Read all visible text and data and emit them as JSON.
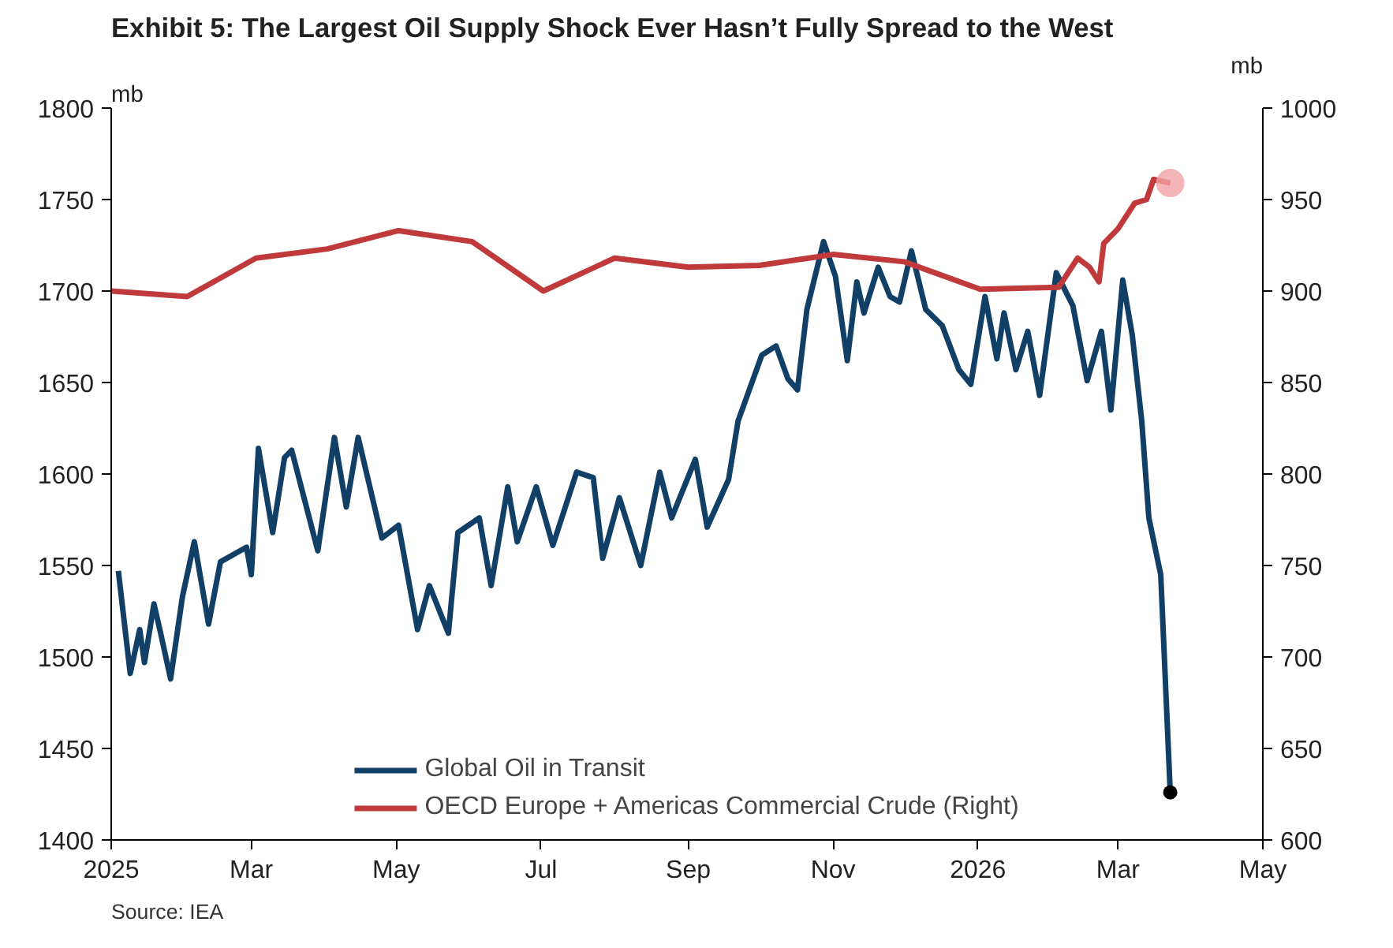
{
  "chart_data": {
    "type": "line",
    "title": "Exhibit 5: The Largest Oil Supply Shock Ever Hasn’t Fully Spread to the West",
    "ylabel": "mb",
    "y2label": "mb",
    "annotations": [
      "Source: IEA"
    ],
    "xlim": [
      "2025-01-01",
      "2026-05-01"
    ],
    "xticks": [
      {
        "value": "2025-01-01",
        "label": "2025"
      },
      {
        "value": "2025-03-01",
        "label": "Mar"
      },
      {
        "value": "2025-05-01",
        "label": "May"
      },
      {
        "value": "2025-07-01",
        "label": "Jul"
      },
      {
        "value": "2025-09-01",
        "label": "Sep"
      },
      {
        "value": "2025-11-01",
        "label": "Nov"
      },
      {
        "value": "2026-01-01",
        "label": "2026"
      },
      {
        "value": "2026-03-01",
        "label": "Mar"
      },
      {
        "value": "2026-05-01",
        "label": "May"
      }
    ],
    "ylim": [
      1400,
      1800
    ],
    "yticks": [
      1400,
      1450,
      1500,
      1550,
      1600,
      1650,
      1700,
      1750,
      1800
    ],
    "y2lim": [
      600,
      1000
    ],
    "y2ticks": [
      600,
      650,
      700,
      750,
      800,
      850,
      900,
      950,
      1000
    ],
    "grid": false,
    "legend": "bottom",
    "line_style": "solid",
    "series": [
      {
        "name": "Global Oil in Transit",
        "color": "#123f66",
        "x": [
          "2025-01-04",
          "2025-01-09",
          "2025-01-13",
          "2025-01-15",
          "2025-01-19",
          "2025-01-22",
          "2025-01-26",
          "2025-01-31",
          "2025-02-05",
          "2025-02-11",
          "2025-02-16",
          "2025-02-27",
          "2025-03-01",
          "2025-03-04",
          "2025-03-10",
          "2025-03-15",
          "2025-03-18",
          "2025-03-29",
          "2025-04-05",
          "2025-04-10",
          "2025-04-15",
          "2025-04-25",
          "2025-05-02",
          "2025-05-10",
          "2025-05-15",
          "2025-05-23",
          "2025-05-27",
          "2025-06-05",
          "2025-06-10",
          "2025-06-17",
          "2025-06-21",
          "2025-06-29",
          "2025-07-06",
          "2025-07-16",
          "2025-07-23",
          "2025-07-27",
          "2025-08-03",
          "2025-08-12",
          "2025-08-20",
          "2025-08-25",
          "2025-09-04",
          "2025-09-09",
          "2025-09-18",
          "2025-09-22",
          "2025-10-02",
          "2025-10-08",
          "2025-10-13",
          "2025-10-17",
          "2025-10-21",
          "2025-10-28",
          "2025-11-02",
          "2025-11-07",
          "2025-11-11",
          "2025-11-14",
          "2025-11-20",
          "2025-11-25",
          "2025-11-29",
          "2025-12-04",
          "2025-12-10",
          "2025-12-17",
          "2025-12-24",
          "2025-12-29",
          "2026-01-04",
          "2026-01-09",
          "2026-01-12",
          "2026-01-17",
          "2026-01-22",
          "2026-01-27",
          "2026-02-03",
          "2026-02-10",
          "2026-02-16",
          "2026-02-22",
          "2026-02-26",
          "2026-03-03",
          "2026-03-07",
          "2026-03-11",
          "2026-03-14",
          "2026-03-19",
          "2026-03-23"
        ],
        "values": [
          1547,
          1491,
          1515,
          1497,
          1529,
          1512,
          1488,
          1533,
          1563,
          1518,
          1552,
          1560,
          1545,
          1614,
          1568,
          1609,
          1613,
          1558,
          1620,
          1582,
          1620,
          1565,
          1572,
          1515,
          1539,
          1513,
          1568,
          1576,
          1539,
          1593,
          1563,
          1593,
          1561,
          1601,
          1598,
          1554,
          1587,
          1550,
          1601,
          1576,
          1608,
          1571,
          1597,
          1629,
          1665,
          1670,
          1652,
          1646,
          1690,
          1727,
          1708,
          1662,
          1705,
          1688,
          1713,
          1697,
          1694,
          1722,
          1690,
          1681,
          1657,
          1649,
          1697,
          1663,
          1688,
          1657,
          1678,
          1643,
          1710,
          1692,
          1651,
          1678,
          1635,
          1706,
          1676,
          1629,
          1576,
          1545,
          1426
        ]
      },
      {
        "name": "OECD Europe + Americas Commercial Crude (Right)",
        "color": "#c0393b",
        "axis": "y2",
        "x": [
          "2025-01-01",
          "2025-02-02",
          "2025-03-03",
          "2025-04-02",
          "2025-05-02",
          "2025-06-02",
          "2025-07-02",
          "2025-08-01",
          "2025-09-01",
          "2025-10-01",
          "2025-11-01",
          "2025-12-01",
          "2026-01-02",
          "2026-02-04",
          "2026-02-12",
          "2026-02-17",
          "2026-02-21",
          "2026-02-23",
          "2026-03-01",
          "2026-03-08",
          "2026-03-13",
          "2026-03-16",
          "2026-03-23"
        ],
        "values": [
          900,
          897,
          918,
          923,
          933,
          927,
          900,
          918,
          913,
          914,
          920,
          916,
          901,
          902,
          918,
          913,
          905,
          926,
          934,
          948,
          950,
          961,
          959
        ]
      },
      {
        "type": "scatter",
        "marker": "circle",
        "color": "#f2a3a6",
        "axis": "y2",
        "x": [
          "2026-03-23"
        ],
        "values": [
          959
        ]
      },
      {
        "type": "scatter",
        "marker": "circle",
        "color": "#000000",
        "x": [
          "2026-03-23"
        ],
        "values": [
          1426
        ]
      }
    ]
  }
}
